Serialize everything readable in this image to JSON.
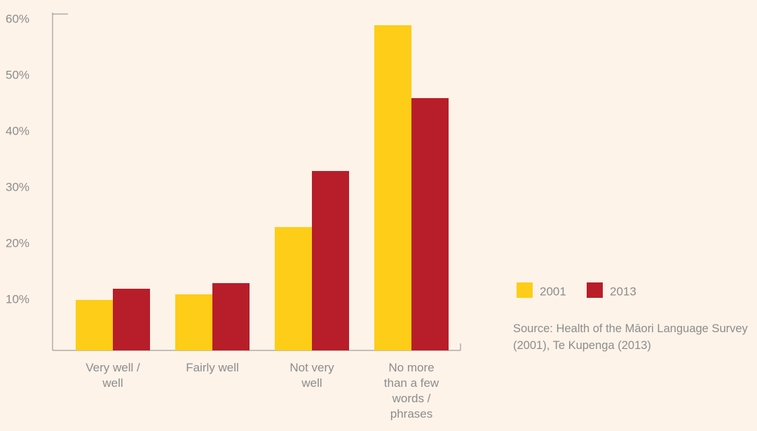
{
  "chart_data": {
    "type": "bar",
    "categories": [
      "Very well / well",
      "Fairly well",
      "Not very well",
      "No more than a few words / phrases"
    ],
    "series": [
      {
        "name": "2001",
        "color": "#fecd17",
        "values": [
          9,
          10,
          22,
          58
        ]
      },
      {
        "name": "2013",
        "color": "#b81e29",
        "values": [
          11,
          12,
          32,
          45
        ]
      }
    ],
    "ylim": [
      0,
      60
    ],
    "yticks": [
      {
        "value": 10,
        "label": "10%"
      },
      {
        "value": 20,
        "label": "20%"
      },
      {
        "value": 30,
        "label": "30%"
      },
      {
        "value": 40,
        "label": "40%"
      },
      {
        "value": 50,
        "label": "50%"
      },
      {
        "value": 60,
        "label": "60%"
      }
    ],
    "annotation": "Source: Health of the Māori Language Survey (2001), Te Kupenga (2013)"
  }
}
